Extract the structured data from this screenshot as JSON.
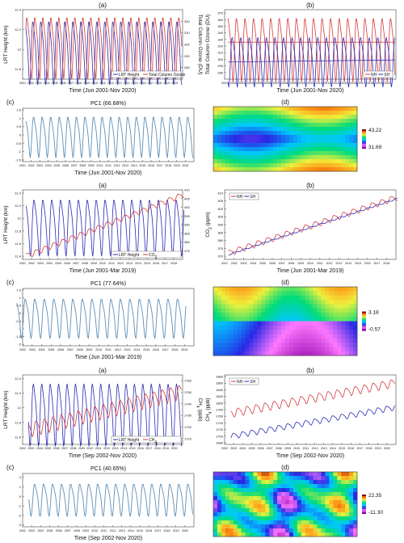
{
  "colors": {
    "red": "#d43a3a",
    "blue": "#2b2bb5",
    "teal": "#5d8fb8"
  },
  "chart_data": [
    {
      "id": "a1",
      "type": "line",
      "panel_label": "(a)",
      "title": "",
      "xlabel": "Time (Jun 2001-Nov 2020)",
      "ylabel": "LRT Height (km)",
      "y2label": "Total Column Ozone (DU)",
      "xticks": [
        "2001",
        "2002",
        "2003",
        "2004",
        "2005",
        "2006",
        "2007",
        "2008",
        "2009",
        "2010",
        "2011",
        "2012",
        "2013",
        "2014",
        "2015",
        "2016",
        "2017",
        "2018",
        "2019",
        "2020"
      ],
      "yticks": [
        "11.8",
        "12",
        "12.2",
        "12.4"
      ],
      "y2ticks": [
        "280",
        "290",
        "300",
        "310",
        "320"
      ],
      "ylim": [
        11.7,
        12.4
      ],
      "y2lim": [
        270,
        330
      ],
      "legend": [
        "LRT Height",
        "Total Column Ozone"
      ],
      "series": [
        {
          "name": "LRT Height",
          "axis": "left",
          "mean": 12.0,
          "amp": 0.3,
          "start": 2001.4,
          "end": 2020.9,
          "phase": 0.1
        },
        {
          "name": "Total Column Ozone",
          "axis": "right",
          "mean": 300,
          "amp": 25,
          "start": 2001.4,
          "end": 2020.9,
          "phase": 0.35
        }
      ]
    },
    {
      "id": "b1",
      "type": "line",
      "panel_label": "(b)",
      "title": "",
      "xlabel": "Time (Jun 2001-Nov 2020)",
      "ylabel": "Total Column Ozone (DU)",
      "xticks": [
        "2001",
        "2002",
        "2003",
        "2004",
        "2005",
        "2006",
        "2007",
        "2008",
        "2009",
        "2010",
        "2011",
        "2012",
        "2013",
        "2014",
        "2015",
        "2016",
        "2017",
        "2018",
        "2019",
        "2020"
      ],
      "yticks": [
        "280",
        "290",
        "300",
        "310",
        "320",
        "330",
        "340",
        "350",
        "360",
        "370"
      ],
      "ylim": [
        270,
        375
      ],
      "legend": [
        "NH",
        "SH"
      ],
      "series": [
        {
          "name": "NH",
          "mean": 320,
          "amp": 45,
          "start": 2001.4,
          "end": 2020.9,
          "phase": 0.2,
          "trend_line": [
            326,
            326
          ]
        },
        {
          "name": "SH",
          "mean": 300,
          "amp": 35,
          "start": 2001.4,
          "end": 2020.9,
          "phase": 0.7,
          "trend_line": [
            296,
            299
          ]
        }
      ]
    },
    {
      "id": "c1",
      "type": "line",
      "panel_label": "(c)",
      "title": "PC1 (66.68%)",
      "xlabel": "Time (Jun 2001-Nov 2020)",
      "ylabel": "",
      "xticks": [
        "2001",
        "2002",
        "2003",
        "2004",
        "2005",
        "2006",
        "2007",
        "2008",
        "2009",
        "2010",
        "2011",
        "2012",
        "2013",
        "2014",
        "2015",
        "2016",
        "2017",
        "2018",
        "2019",
        "2020"
      ],
      "yticks": [
        "-1.5",
        "-1",
        "-0.5",
        "0",
        "0.5",
        "1",
        "1.5"
      ],
      "ylim": [
        -1.6,
        1.6
      ],
      "series": [
        {
          "name": "PC1",
          "mean": 0,
          "amp": 1.15,
          "start": 2001.4,
          "end": 2020.9,
          "phase": 0.1
        }
      ]
    },
    {
      "id": "a2",
      "type": "line",
      "panel_label": "(a)",
      "title": "",
      "xlabel": "Time (Jun 2001-Mar 2019)",
      "ylabel": "LRT Height (km)",
      "y2label": "",
      "xticks": [
        "2001",
        "2002",
        "2003",
        "2004",
        "2005",
        "2006",
        "2007",
        "2008",
        "2009",
        "2010",
        "2011",
        "2012",
        "2013",
        "2014",
        "2015",
        "2016",
        "2017",
        "2018"
      ],
      "yticks": [
        "11.4",
        "11.6",
        "11.8",
        "12",
        "12.2",
        "12.4"
      ],
      "y2ticks": [
        "375",
        "380",
        "385",
        "390",
        "395",
        "400",
        "405",
        "410"
      ],
      "ylim": [
        11.35,
        12.45
      ],
      "y2lim": [
        370,
        410
      ],
      "legend": [
        "LRT Height",
        "CO2"
      ],
      "series": [
        {
          "name": "LRT Height",
          "axis": "left",
          "mean": 11.9,
          "amp": 0.42,
          "start": 2001.4,
          "end": 2019.2,
          "phase": 0.1
        },
        {
          "name": "CO2",
          "axis": "right",
          "mean0": 372,
          "slope": 2.0,
          "amp": 1.5,
          "start": 2001.4,
          "end": 2019.2,
          "phase": 0.3
        }
      ]
    },
    {
      "id": "b2",
      "type": "line",
      "panel_label": "(b)",
      "title": "",
      "xlabel": "Time (Jun 2001-Mar 2019)",
      "ylabel": "CO2 (ppm)",
      "xticks": [
        "2001",
        "2002",
        "2003",
        "2004",
        "2005",
        "2006",
        "2007",
        "2008",
        "2009",
        "2010",
        "2011",
        "2012",
        "2013",
        "2014",
        "2015",
        "2016",
        "2017",
        "2018"
      ],
      "yticks": [
        "370",
        "375",
        "380",
        "385",
        "390",
        "395",
        "400",
        "405",
        "410"
      ],
      "ylim": [
        368,
        412
      ],
      "legend": [
        "NH",
        "SH"
      ],
      "series": [
        {
          "name": "NH",
          "mean0": 372,
          "slope": 2.0,
          "amp": 1.8,
          "start": 2001.4,
          "end": 2019.2,
          "phase": 0.3
        },
        {
          "name": "SH",
          "mean0": 371,
          "slope": 2.0,
          "amp": 0.4,
          "start": 2001.4,
          "end": 2019.2,
          "phase": 0.8
        }
      ]
    },
    {
      "id": "c2",
      "type": "line",
      "panel_label": "(c)",
      "title": "PC1 (77.64%)",
      "xlabel": "Time (Jun 2001-Mar 2019)",
      "ylabel": "",
      "xticks": [
        "2002",
        "2003",
        "2004",
        "2005",
        "2006",
        "2007",
        "2008",
        "2009",
        "2010",
        "2011",
        "2012",
        "2013",
        "2014",
        "2015",
        "2016",
        "2017",
        "2018",
        "2019"
      ],
      "yticks": [
        "-2",
        "-1.5",
        "-1",
        "-0.5",
        "0",
        "0.5",
        "1",
        "1.5"
      ],
      "ylim": [
        -2.1,
        1.6
      ],
      "series": [
        {
          "name": "PC1",
          "mean": -0.2,
          "amp": 1.2,
          "start": 2001.4,
          "end": 2019.2,
          "phase": 0.1
        }
      ]
    },
    {
      "id": "a3",
      "type": "line",
      "panel_label": "(a)",
      "title": "",
      "xlabel": "Time (Sep 2002-Nov 2020)",
      "ylabel": "LRT Height (km)",
      "y2label": "CH4 (ppb)",
      "xticks": [
        "2002",
        "2003",
        "2004",
        "2005",
        "2006",
        "2007",
        "2008",
        "2009",
        "2010",
        "2011",
        "2012",
        "2013",
        "2014",
        "2015",
        "2016",
        "2017",
        "2018",
        "2019",
        "2020"
      ],
      "yticks": [
        "11.6",
        "11.8",
        "12",
        "12.2",
        "12.4"
      ],
      "y2ticks": [
        "1710",
        "1720",
        "1730",
        "1740",
        "1750",
        "1760"
      ],
      "ylim": [
        11.5,
        12.45
      ],
      "y2lim": [
        1705,
        1765
      ],
      "legend": [
        "LRT Height",
        "CH4"
      ],
      "series": [
        {
          "name": "LRT Height",
          "axis": "left",
          "mean": 11.95,
          "amp": 0.4,
          "start": 2002.7,
          "end": 2020.9,
          "phase": 0.1
        },
        {
          "name": "CH4",
          "axis": "right",
          "mean0": 1718,
          "slope": 1.8,
          "amp": 6,
          "start": 2002.7,
          "end": 2020.9,
          "phase": 0.4
        }
      ]
    },
    {
      "id": "b3",
      "type": "line",
      "panel_label": "(b)",
      "title": "",
      "xlabel": "Time (Sep 2002-Nov 2020)",
      "ylabel": "CH4 (ppb)",
      "xticks": [
        "2002",
        "2003",
        "2004",
        "2005",
        "2006",
        "2007",
        "2008",
        "2009",
        "2010",
        "2011",
        "2012",
        "2013",
        "2014",
        "2015",
        "2016",
        "2017",
        "2018",
        "2019",
        "2020"
      ],
      "yticks": [
        "1680",
        "1700",
        "1720",
        "1740",
        "1760",
        "1780",
        "1800",
        "1820",
        "1840",
        "1860",
        "1880"
      ],
      "ylim": [
        1675,
        1885
      ],
      "legend": [
        "NH",
        "SH"
      ],
      "series": [
        {
          "name": "NH",
          "mean0": 1770,
          "slope": 5.0,
          "amp": 12,
          "start": 2002.7,
          "end": 2020.9,
          "phase": 0.3
        },
        {
          "name": "SH",
          "mean0": 1700,
          "slope": 4.8,
          "amp": 8,
          "start": 2002.7,
          "end": 2020.9,
          "phase": 0.8
        }
      ]
    },
    {
      "id": "c3",
      "type": "line",
      "panel_label": "(c)",
      "title": "PC1 (40.65%)",
      "xlabel": "Time (Sep 2002-Nov 2020)",
      "ylabel": "",
      "xticks": [
        "2002",
        "2003",
        "2004",
        "2005",
        "2006",
        "2007",
        "2008",
        "2009",
        "2010",
        "2011",
        "2012",
        "2013",
        "2014",
        "2015",
        "2016",
        "2017",
        "2018",
        "2019",
        "2020"
      ],
      "yticks": [
        "-3",
        "-2",
        "-1",
        "0",
        "1",
        "2"
      ],
      "ylim": [
        -3.2,
        2.4
      ],
      "series": [
        {
          "name": "PC1",
          "mean": -0.2,
          "amp": 1.6,
          "start": 2002.7,
          "end": 2020.9,
          "phase": 0.15
        }
      ]
    },
    {
      "id": "d1",
      "type": "heatmap",
      "panel_label": "(d)",
      "colorbar": [
        "43.22",
        "31.69"
      ],
      "style": "ozone"
    },
    {
      "id": "d2",
      "type": "heatmap",
      "panel_label": "(d)",
      "colorbar": [
        "3.18",
        "-0.57"
      ],
      "style": "co2"
    },
    {
      "id": "d3",
      "type": "heatmap",
      "panel_label": "(d)",
      "colorbar": [
        "22.35",
        "-11.30"
      ],
      "style": "ch4"
    }
  ]
}
